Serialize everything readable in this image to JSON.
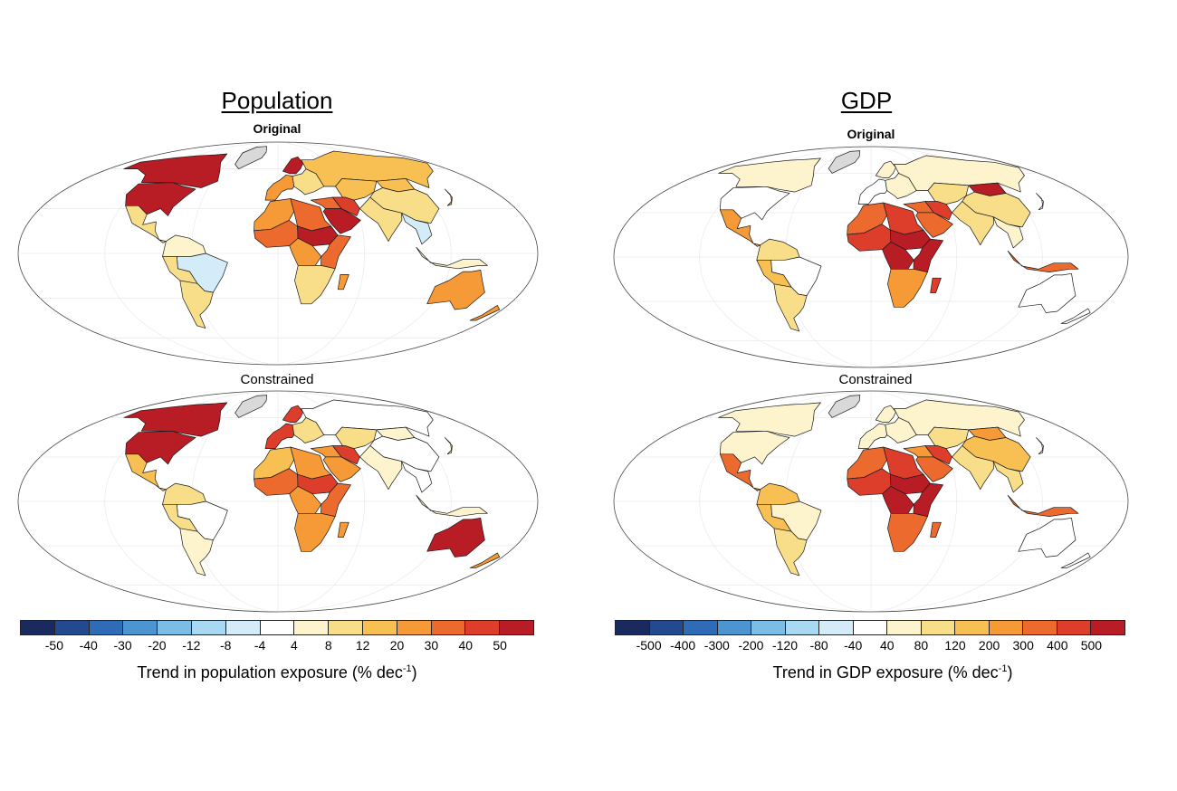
{
  "palette": {
    "level_colors": [
      "#1b2a5e",
      "#23498f",
      "#2f6cb7",
      "#4d95d1",
      "#7cbde5",
      "#a8d8f2",
      "#d3ecf8",
      "#ffffff",
      "#fdf3cc",
      "#f9de8a",
      "#f8bf52",
      "#f59a37",
      "#ec6a2e",
      "#dd3e2b",
      "#b81d25"
    ],
    "ocean": "#ffffff",
    "graticule": "#e6e6e6",
    "border": "#1a1a1a",
    "greenland": "#d9d9d9"
  },
  "panels": {
    "population": {
      "title": "Population",
      "original_label": "Original",
      "constrained_label": "Constrained",
      "colorbar": {
        "ticks": [
          "-50",
          "-40",
          "-30",
          "-20",
          "-12",
          "-8",
          "-4",
          "4",
          "8",
          "12",
          "20",
          "30",
          "40",
          "50"
        ],
        "label_prefix": "Trend in population exposure (% dec",
        "label_sup": "-1",
        "label_suffix": ")"
      },
      "maps": {
        "original": {
          "north_america": 14,
          "us": 14,
          "central_america": 9,
          "south_america_north": 8,
          "brazil": 6,
          "andes": 9,
          "south_cone": 9,
          "greenland": -1,
          "western_europe": 11,
          "scandinavia": 14,
          "eastern_europe": 9,
          "russia": 10,
          "central_asia": 10,
          "china": 9,
          "mongolia": 10,
          "middle_east": 12,
          "arabia": 14,
          "iran": 13,
          "india": 9,
          "southeast_asia": 6,
          "japan": 11,
          "sahara_west": 11,
          "sahara_east": 12,
          "west_africa": 12,
          "sahel": 14,
          "central_africa": 11,
          "east_africa": 12,
          "southern_africa": 9,
          "madagascar": 11,
          "australia": 11,
          "nz": 11,
          "indonesia": 8
        },
        "constrained": {
          "north_america": 14,
          "us": 14,
          "central_america": 10,
          "south_america_north": 9,
          "brazil": 7,
          "andes": 9,
          "south_cone": 8,
          "greenland": -1,
          "western_europe": 13,
          "scandinavia": 13,
          "eastern_europe": 9,
          "russia": 7,
          "central_asia": 9,
          "china": 7,
          "mongolia": 8,
          "middle_east": 11,
          "arabia": 11,
          "iran": 13,
          "india": 8,
          "southeast_asia": 7,
          "japan": 9,
          "sahara_west": 10,
          "sahara_east": 11,
          "west_africa": 12,
          "sahel": 13,
          "central_africa": 11,
          "east_africa": 12,
          "southern_africa": 11,
          "madagascar": 11,
          "australia": 14,
          "nz": 11,
          "indonesia": 8
        }
      }
    },
    "gdp": {
      "title": "GDP",
      "original_label": "Original",
      "constrained_label": "Constrained",
      "colorbar": {
        "ticks": [
          "-500",
          "-400",
          "-300",
          "-200",
          "-120",
          "-80",
          "-40",
          "40",
          "80",
          "120",
          "200",
          "300",
          "400",
          "500"
        ],
        "label_prefix": "Trend in GDP exposure (% dec",
        "label_sup": "-1",
        "label_suffix": ")"
      },
      "maps": {
        "original": {
          "north_america": 8,
          "us": 7,
          "central_america": 11,
          "south_america_north": 9,
          "brazil": 7,
          "andes": 10,
          "south_cone": 9,
          "greenland": -1,
          "western_europe": 7,
          "scandinavia": 8,
          "eastern_europe": 8,
          "russia": 8,
          "central_asia": 9,
          "china": 9,
          "mongolia": 14,
          "middle_east": 12,
          "arabia": 12,
          "iran": 13,
          "india": 9,
          "southeast_asia": 8,
          "japan": 7,
          "sahara_west": 12,
          "sahara_east": 13,
          "west_africa": 13,
          "sahel": 14,
          "central_africa": 14,
          "east_africa": 14,
          "southern_africa": 11,
          "madagascar": 13,
          "australia": 7,
          "nz": 7,
          "indonesia": 12
        },
        "constrained": {
          "north_america": 8,
          "us": 8,
          "central_america": 12,
          "south_america_north": 10,
          "brazil": 8,
          "andes": 10,
          "south_cone": 9,
          "greenland": -1,
          "western_europe": 8,
          "scandinavia": 8,
          "eastern_europe": 8,
          "russia": 8,
          "central_asia": 9,
          "china": 10,
          "mongolia": 11,
          "middle_east": 11,
          "arabia": 12,
          "iran": 13,
          "india": 9,
          "southeast_asia": 9,
          "japan": 8,
          "sahara_west": 12,
          "sahara_east": 13,
          "west_africa": 13,
          "sahel": 14,
          "central_africa": 14,
          "east_africa": 14,
          "southern_africa": 12,
          "madagascar": 12,
          "australia": 7,
          "nz": 7,
          "indonesia": 12
        }
      }
    }
  }
}
